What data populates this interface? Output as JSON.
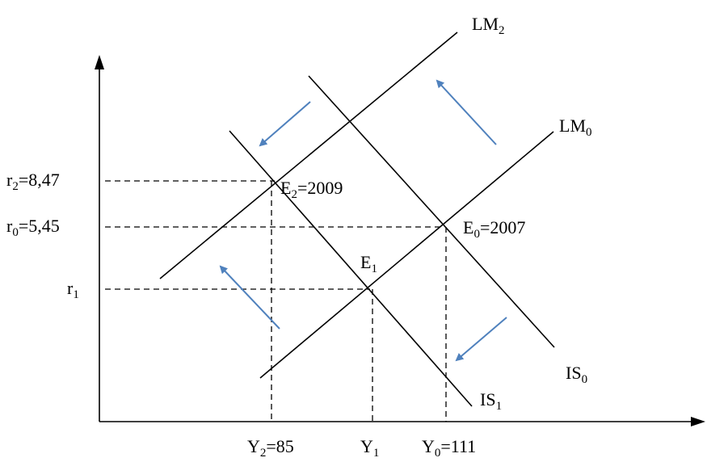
{
  "diagram": {
    "curves": {
      "lm2": {
        "label": "LM",
        "sub": "2"
      },
      "lm0": {
        "label": "LM",
        "sub": "0"
      },
      "is0": {
        "label": "IS",
        "sub": "0"
      },
      "is1": {
        "label": "IS",
        "sub": "1"
      }
    },
    "points": {
      "e2": {
        "label": "E",
        "sub": "2",
        "suffix": "=2009"
      },
      "e0": {
        "label": "E",
        "sub": "0",
        "suffix": "=2007"
      },
      "e1": {
        "label": "E",
        "sub": "1"
      }
    },
    "y_axis_labels": {
      "r2": {
        "label": "r",
        "sub": "2",
        "suffix": "=8,47"
      },
      "r0": {
        "label": "r",
        "sub": "0",
        "suffix": "=5,45"
      },
      "r1": {
        "label": "r",
        "sub": "1"
      }
    },
    "x_axis_labels": {
      "y2": {
        "label": "Y",
        "sub": "2",
        "suffix": "=85"
      },
      "y1": {
        "label": "Y",
        "sub": "1"
      },
      "y0": {
        "label": "Y",
        "sub": "0",
        "suffix": "=111"
      }
    },
    "colors": {
      "arrow": "#4f81bd",
      "line": "#000000"
    }
  }
}
